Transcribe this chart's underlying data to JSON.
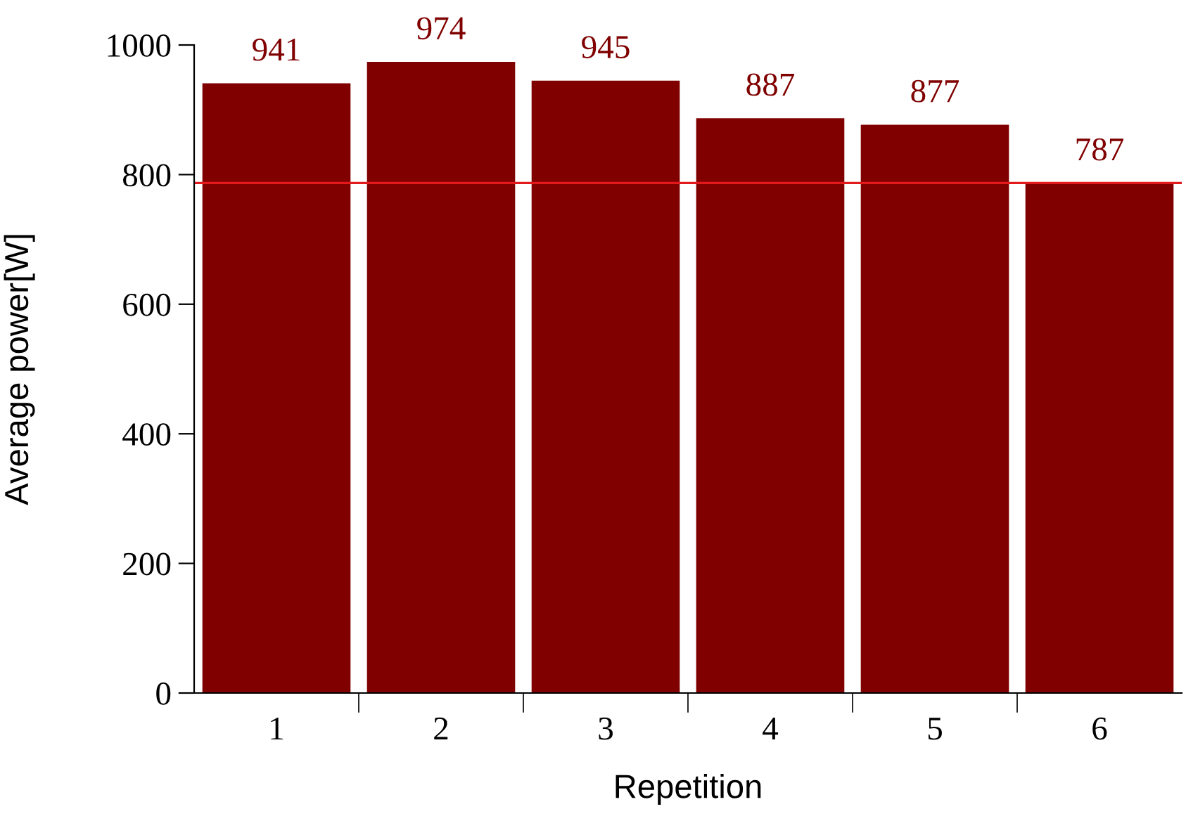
{
  "chart_data": {
    "type": "bar",
    "xlabel": "Repetition",
    "ylabel": "Average power[W]",
    "categories": [
      "1",
      "2",
      "3",
      "4",
      "5",
      "6"
    ],
    "values": [
      941,
      974,
      945,
      887,
      877,
      787
    ],
    "color": "#800000",
    "data_labels": true,
    "ylim": [
      0,
      1000
    ],
    "yticks": [
      0,
      200,
      400,
      600,
      800,
      1000
    ],
    "ref_lines": [
      {
        "axis": "y",
        "value": 787,
        "color": "#e31a1c"
      }
    ],
    "grid": false,
    "legend": false
  }
}
